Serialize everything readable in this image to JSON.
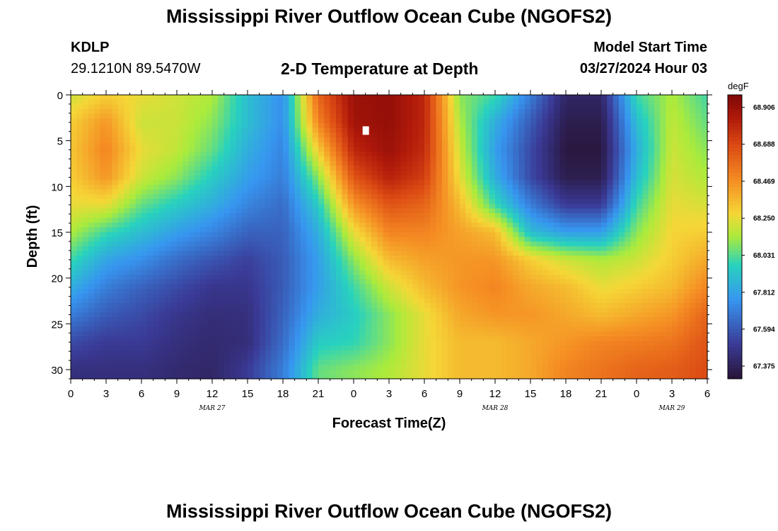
{
  "header": {
    "title": "Mississippi River Outflow Ocean Cube (NGOFS2)",
    "station": "KDLP",
    "coords": "29.1210N  89.5470W",
    "subtitle": "2-D Temperature at Depth",
    "model_start_label": "Model Start Time",
    "model_start_time": "03/27/2024 Hour 03"
  },
  "footer": {
    "title": "Mississippi River Outflow Ocean Cube (NGOFS2)"
  },
  "chart_data": {
    "type": "heatmap",
    "xlabel": "Forecast Time(Z)",
    "ylabel": "Depth (ft)",
    "x_tick_labels": [
      "0",
      "3",
      "6",
      "9",
      "12",
      "15",
      "18",
      "21",
      "0",
      "3",
      "6",
      "9",
      "12",
      "15",
      "18",
      "21",
      "0",
      "3",
      "6"
    ],
    "x_range_hours": [
      0,
      54
    ],
    "date_labels": [
      {
        "label": "MAR 27",
        "hour": 12
      },
      {
        "label": "MAR 28",
        "hour": 36
      },
      {
        "label": "MAR 29",
        "hour": 51
      }
    ],
    "y_ticks": [
      0,
      5,
      10,
      15,
      20,
      25,
      30
    ],
    "ylim": [
      0,
      31
    ],
    "y_inverted": true,
    "colorbar": {
      "unit": "degF",
      "ticks": [
        "68.906",
        "68.688",
        "68.469",
        "68.250",
        "68.031",
        "67.812",
        "67.594",
        "67.375"
      ],
      "min": 67.3,
      "max": 68.98
    },
    "marker": {
      "hour": 25,
      "depth": 3.9
    },
    "field": [
      {
        "t": 0,
        "d": [
          68.2,
          68.3,
          68.32,
          68.3,
          68.25,
          68.15,
          68.0,
          67.85,
          67.7,
          67.55,
          67.45
        ]
      },
      {
        "t": 3,
        "d": [
          68.3,
          68.45,
          68.5,
          68.45,
          68.25,
          68.0,
          67.82,
          67.7,
          67.6,
          67.5,
          67.45
        ]
      },
      {
        "t": 6,
        "d": [
          68.25,
          68.2,
          68.25,
          68.2,
          68.05,
          67.9,
          67.75,
          67.62,
          67.55,
          67.5,
          67.45
        ]
      },
      {
        "t": 9,
        "d": [
          68.2,
          68.2,
          68.18,
          68.1,
          67.95,
          67.8,
          67.65,
          67.55,
          67.48,
          67.45,
          67.42
        ]
      },
      {
        "t": 12,
        "d": [
          68.15,
          68.1,
          68.05,
          67.95,
          67.85,
          67.72,
          67.58,
          67.48,
          67.44,
          67.42,
          67.4
        ]
      },
      {
        "t": 15,
        "d": [
          67.9,
          67.9,
          67.85,
          67.8,
          67.72,
          67.62,
          67.52,
          67.48,
          67.45,
          67.44,
          67.5
        ]
      },
      {
        "t": 18,
        "d": [
          67.75,
          67.75,
          67.72,
          67.7,
          67.65,
          67.62,
          67.6,
          67.6,
          67.62,
          67.65,
          67.7
        ]
      },
      {
        "t": 21,
        "d": [
          68.6,
          68.5,
          68.3,
          68.1,
          67.95,
          67.85,
          67.8,
          67.8,
          67.85,
          67.95,
          68.05
        ]
      },
      {
        "t": 24,
        "d": [
          68.9,
          68.88,
          68.8,
          68.65,
          68.45,
          68.25,
          68.1,
          68.0,
          67.95,
          67.98,
          68.1
        ]
      },
      {
        "t": 27,
        "d": [
          68.92,
          68.92,
          68.9,
          68.82,
          68.65,
          68.5,
          68.35,
          68.2,
          68.1,
          68.1,
          68.15
        ]
      },
      {
        "t": 30,
        "d": [
          68.8,
          68.8,
          68.78,
          68.72,
          68.6,
          68.5,
          68.42,
          68.35,
          68.25,
          68.25,
          68.25
        ]
      },
      {
        "t": 33,
        "d": [
          68.1,
          68.15,
          68.2,
          68.25,
          68.35,
          68.42,
          68.45,
          68.45,
          68.4,
          68.35,
          68.35
        ]
      },
      {
        "t": 36,
        "d": [
          68.0,
          67.85,
          67.8,
          67.85,
          68.0,
          68.35,
          68.45,
          68.5,
          68.45,
          68.35,
          68.35
        ]
      },
      {
        "t": 39,
        "d": [
          67.7,
          67.6,
          67.55,
          67.55,
          67.7,
          67.9,
          68.3,
          68.4,
          68.45,
          68.4,
          68.4
        ]
      },
      {
        "t": 42,
        "d": [
          67.4,
          67.35,
          67.32,
          67.35,
          67.5,
          67.8,
          68.2,
          68.35,
          68.4,
          68.45,
          68.5
        ]
      },
      {
        "t": 45,
        "d": [
          67.4,
          67.35,
          67.32,
          67.35,
          67.5,
          67.8,
          68.15,
          68.25,
          68.35,
          68.5,
          68.55
        ]
      },
      {
        "t": 48,
        "d": [
          68.0,
          67.9,
          67.85,
          67.9,
          68.0,
          68.1,
          68.2,
          68.3,
          68.4,
          68.52,
          68.6
        ]
      },
      {
        "t": 51,
        "d": [
          68.15,
          68.18,
          68.2,
          68.22,
          68.25,
          68.28,
          68.3,
          68.35,
          68.45,
          68.55,
          68.62
        ]
      },
      {
        "t": 54,
        "d": [
          68.0,
          68.05,
          68.1,
          68.15,
          68.22,
          68.3,
          68.4,
          68.5,
          68.6,
          68.65,
          68.68
        ]
      }
    ],
    "field_depths": [
      0,
      3,
      6,
      9,
      12,
      15,
      18,
      21,
      24,
      27,
      30
    ]
  }
}
